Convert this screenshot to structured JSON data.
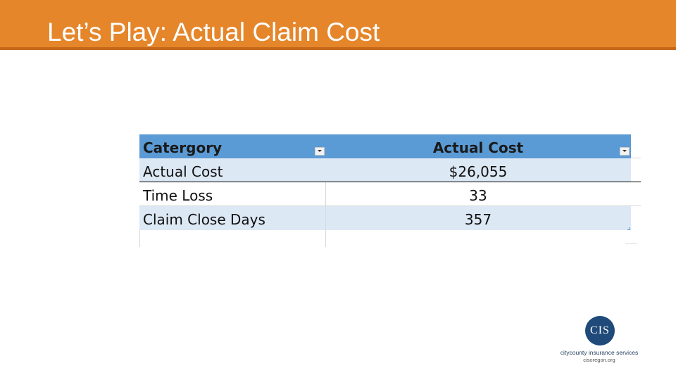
{
  "slide": {
    "title": "Let’s Play: Actual Claim Cost"
  },
  "table": {
    "headers": {
      "category": "Catergory",
      "value": "Actual Cost"
    },
    "rows": [
      {
        "category": "Actual Cost",
        "value": "$26,055"
      },
      {
        "category": "Time Loss",
        "value": "33"
      },
      {
        "category": "Claim Close Days",
        "value": "357"
      }
    ]
  },
  "logo": {
    "monogram": "CIS",
    "name": "citycounty insurance services",
    "url": "cisoregon.org"
  },
  "colors": {
    "title_bar": "#e5862a",
    "header_fill": "#5b9bd5",
    "band_fill": "#dde8f5",
    "logo_circle": "#1f4a79"
  }
}
